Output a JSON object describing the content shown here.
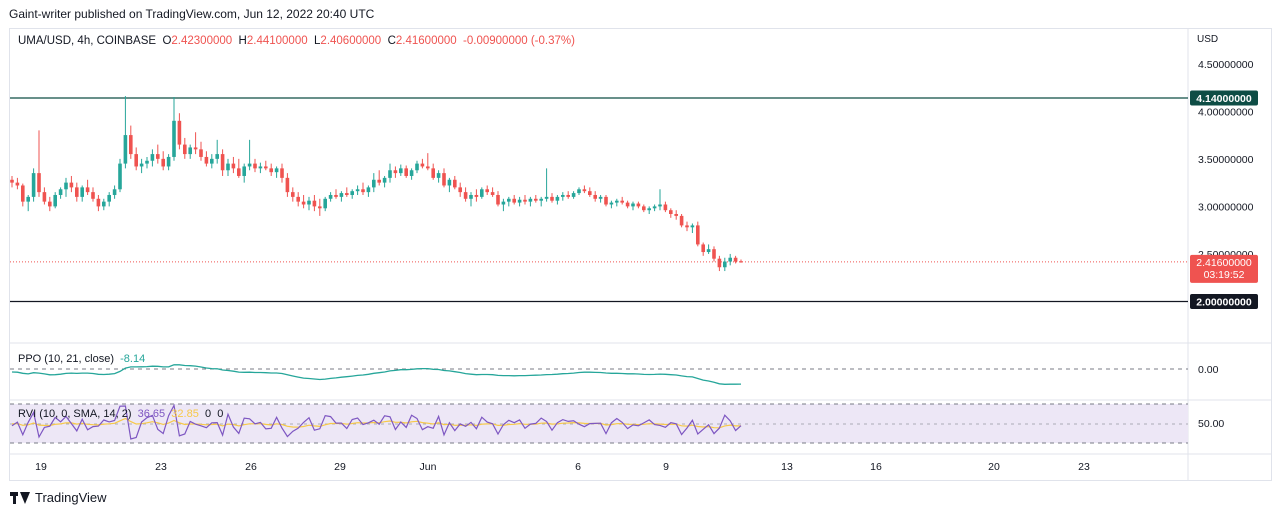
{
  "header": {
    "publisher": "Gaint-writer published on TradingView.com, Jun 12, 2022 20:40 UTC"
  },
  "legend": {
    "symbol": "UMA/USD, 4h, COINBASE",
    "o_label": "O",
    "o": "2.42300000",
    "h_label": "H",
    "h": "2.44100000",
    "l_label": "L",
    "l": "2.40600000",
    "c_label": "C",
    "c": "2.41600000",
    "change": "-0.00900000 (-0.37%)"
  },
  "currency": "USD",
  "colors": {
    "up": "#26a69a",
    "down": "#ef5350",
    "ppo": "#26a69a",
    "rvi": "#7e57c2",
    "rvi_signal": "#f7c948",
    "level_line": "#0e4d45",
    "support_line": "#131722",
    "rvi_bg": "#ede7f6"
  },
  "price_axis": {
    "ticks": [
      "4.50000000",
      "4.00000000",
      "3.50000000",
      "3.00000000",
      "2.50000000"
    ]
  },
  "levels": {
    "resistance": {
      "value": 4.14,
      "label": "4.14000000"
    },
    "support": {
      "value": 2.0,
      "label": "2.00000000"
    },
    "last": {
      "value": 2.416,
      "label": "2.41600000",
      "countdown": "03:19:52"
    }
  },
  "ppo": {
    "label": "PPO (10, 21, close)",
    "value": "-8.14",
    "axis_tick": "0.00"
  },
  "rvi": {
    "label_name": "RVI (10, 0, SMA, 14, 2)",
    "value1": "36.65",
    "value2": "32.85",
    "value3": "0",
    "value4": "0",
    "axis_tick": "50.00"
  },
  "time_axis": {
    "labels": [
      "19",
      "23",
      "26",
      "29",
      "Jun",
      "6",
      "9",
      "13",
      "16",
      "20",
      "23"
    ]
  },
  "footer": {
    "brand": "TradingView"
  },
  "chart_data": {
    "type": "candlestick",
    "title": "UMA/USD, 4h, COINBASE",
    "ylabel": "USD",
    "ylim": [
      1.7,
      4.75
    ],
    "candles_ohlc": [
      [
        3.28,
        3.32,
        3.2,
        3.25
      ],
      [
        3.25,
        3.3,
        3.18,
        3.22
      ],
      [
        3.22,
        3.24,
        3.0,
        3.05
      ],
      [
        3.05,
        3.12,
        2.95,
        3.1
      ],
      [
        3.1,
        3.4,
        3.05,
        3.35
      ],
      [
        3.35,
        3.8,
        3.1,
        3.15
      ],
      [
        3.15,
        3.2,
        3.02,
        3.05
      ],
      [
        3.05,
        3.1,
        2.95,
        3.0
      ],
      [
        3.0,
        3.15,
        2.98,
        3.12
      ],
      [
        3.12,
        3.2,
        3.08,
        3.18
      ],
      [
        3.18,
        3.3,
        3.1,
        3.25
      ],
      [
        3.25,
        3.32,
        3.15,
        3.2
      ],
      [
        3.2,
        3.25,
        3.05,
        3.1
      ],
      [
        3.1,
        3.22,
        3.05,
        3.2
      ],
      [
        3.2,
        3.28,
        3.12,
        3.15
      ],
      [
        3.15,
        3.2,
        3.05,
        3.08
      ],
      [
        3.08,
        3.12,
        2.95,
        3.0
      ],
      [
        3.0,
        3.08,
        2.96,
        3.05
      ],
      [
        3.05,
        3.15,
        3.0,
        3.12
      ],
      [
        3.12,
        3.22,
        3.08,
        3.18
      ],
      [
        3.18,
        3.5,
        3.15,
        3.45
      ],
      [
        3.45,
        4.16,
        3.4,
        3.75
      ],
      [
        3.75,
        3.85,
        3.5,
        3.55
      ],
      [
        3.55,
        3.62,
        3.38,
        3.42
      ],
      [
        3.42,
        3.5,
        3.35,
        3.45
      ],
      [
        3.45,
        3.52,
        3.4,
        3.48
      ],
      [
        3.48,
        3.6,
        3.42,
        3.55
      ],
      [
        3.55,
        3.65,
        3.45,
        3.5
      ],
      [
        3.5,
        3.58,
        3.38,
        3.42
      ],
      [
        3.42,
        3.55,
        3.38,
        3.52
      ],
      [
        3.52,
        4.15,
        3.48,
        3.9
      ],
      [
        3.9,
        3.98,
        3.6,
        3.65
      ],
      [
        3.65,
        3.72,
        3.5,
        3.55
      ],
      [
        3.55,
        3.65,
        3.5,
        3.62
      ],
      [
        3.62,
        3.78,
        3.55,
        3.6
      ],
      [
        3.6,
        3.68,
        3.48,
        3.52
      ],
      [
        3.52,
        3.58,
        3.42,
        3.45
      ],
      [
        3.45,
        3.55,
        3.4,
        3.5
      ],
      [
        3.5,
        3.7,
        3.45,
        3.55
      ],
      [
        3.55,
        3.6,
        3.32,
        3.38
      ],
      [
        3.38,
        3.5,
        3.32,
        3.45
      ],
      [
        3.45,
        3.52,
        3.35,
        3.4
      ],
      [
        3.4,
        3.5,
        3.3,
        3.32
      ],
      [
        3.32,
        3.45,
        3.25,
        3.42
      ],
      [
        3.42,
        3.7,
        3.38,
        3.45
      ],
      [
        3.45,
        3.5,
        3.36,
        3.4
      ],
      [
        3.4,
        3.46,
        3.35,
        3.42
      ],
      [
        3.42,
        3.48,
        3.38,
        3.4
      ],
      [
        3.4,
        3.45,
        3.32,
        3.36
      ],
      [
        3.36,
        3.42,
        3.3,
        3.4
      ],
      [
        3.4,
        3.45,
        3.25,
        3.3
      ],
      [
        3.3,
        3.35,
        3.1,
        3.15
      ],
      [
        3.15,
        3.2,
        3.05,
        3.1
      ],
      [
        3.1,
        3.15,
        3.0,
        3.05
      ],
      [
        3.05,
        3.12,
        2.98,
        3.02
      ],
      [
        3.02,
        3.1,
        2.96,
        3.06
      ],
      [
        3.06,
        3.12,
        2.95,
        3.0
      ],
      [
        3.0,
        3.08,
        2.9,
        2.98
      ],
      [
        2.98,
        3.1,
        2.95,
        3.08
      ],
      [
        3.08,
        3.15,
        3.05,
        3.12
      ],
      [
        3.12,
        3.18,
        3.08,
        3.1
      ],
      [
        3.1,
        3.16,
        3.05,
        3.14
      ],
      [
        3.14,
        3.2,
        3.1,
        3.12
      ],
      [
        3.12,
        3.18,
        3.08,
        3.16
      ],
      [
        3.16,
        3.22,
        3.12,
        3.18
      ],
      [
        3.18,
        3.25,
        3.12,
        3.15
      ],
      [
        3.15,
        3.22,
        3.1,
        3.2
      ],
      [
        3.2,
        3.35,
        3.15,
        3.28
      ],
      [
        3.28,
        3.38,
        3.22,
        3.25
      ],
      [
        3.25,
        3.32,
        3.2,
        3.3
      ],
      [
        3.3,
        3.45,
        3.25,
        3.38
      ],
      [
        3.38,
        3.42,
        3.3,
        3.35
      ],
      [
        3.35,
        3.44,
        3.32,
        3.4
      ],
      [
        3.4,
        3.43,
        3.3,
        3.32
      ],
      [
        3.32,
        3.4,
        3.28,
        3.38
      ],
      [
        3.38,
        3.48,
        3.35,
        3.45
      ],
      [
        3.45,
        3.5,
        3.4,
        3.42
      ],
      [
        3.42,
        3.56,
        3.38,
        3.4
      ],
      [
        3.4,
        3.45,
        3.28,
        3.3
      ],
      [
        3.3,
        3.38,
        3.25,
        3.35
      ],
      [
        3.35,
        3.4,
        3.2,
        3.22
      ],
      [
        3.22,
        3.3,
        3.15,
        3.28
      ],
      [
        3.28,
        3.32,
        3.18,
        3.2
      ],
      [
        3.2,
        3.25,
        3.1,
        3.15
      ],
      [
        3.15,
        3.2,
        3.05,
        3.08
      ],
      [
        3.08,
        3.15,
        3.0,
        3.12
      ],
      [
        3.12,
        3.18,
        3.05,
        3.1
      ],
      [
        3.1,
        3.2,
        3.08,
        3.18
      ],
      [
        3.18,
        3.22,
        3.12,
        3.15
      ],
      [
        3.15,
        3.2,
        3.1,
        3.12
      ],
      [
        3.12,
        3.16,
        3.0,
        3.02
      ],
      [
        3.02,
        3.08,
        2.95,
        3.05
      ],
      [
        3.05,
        3.1,
        3.0,
        3.08
      ],
      [
        3.08,
        3.12,
        3.02,
        3.04
      ],
      [
        3.04,
        3.1,
        3.0,
        3.07
      ],
      [
        3.07,
        3.12,
        3.02,
        3.05
      ],
      [
        3.05,
        3.1,
        3.0,
        3.08
      ],
      [
        3.08,
        3.12,
        3.04,
        3.06
      ],
      [
        3.06,
        3.1,
        3.0,
        3.08
      ],
      [
        3.08,
        3.4,
        3.05,
        3.1
      ],
      [
        3.1,
        3.14,
        3.04,
        3.06
      ],
      [
        3.06,
        3.12,
        3.02,
        3.1
      ],
      [
        3.1,
        3.15,
        3.06,
        3.12
      ],
      [
        3.12,
        3.16,
        3.08,
        3.1
      ],
      [
        3.1,
        3.16,
        3.08,
        3.14
      ],
      [
        3.14,
        3.2,
        3.12,
        3.18
      ],
      [
        3.18,
        3.22,
        3.14,
        3.16
      ],
      [
        3.16,
        3.2,
        3.1,
        3.12
      ],
      [
        3.12,
        3.16,
        3.05,
        3.08
      ],
      [
        3.08,
        3.12,
        3.04,
        3.1
      ],
      [
        3.1,
        3.12,
        3.0,
        3.02
      ],
      [
        3.02,
        3.06,
        2.98,
        3.04
      ],
      [
        3.04,
        3.08,
        3.0,
        3.06
      ],
      [
        3.06,
        3.1,
        3.02,
        3.04
      ],
      [
        3.04,
        3.06,
        2.98,
        3.0
      ],
      [
        3.0,
        3.05,
        2.96,
        3.03
      ],
      [
        3.03,
        3.05,
        2.98,
        3.0
      ],
      [
        3.0,
        3.02,
        2.94,
        2.96
      ],
      [
        2.96,
        3.0,
        2.92,
        2.98
      ],
      [
        2.98,
        3.02,
        2.95,
        3.0
      ],
      [
        3.0,
        3.18,
        2.96,
        3.02
      ],
      [
        3.02,
        3.05,
        2.94,
        2.96
      ],
      [
        2.96,
        2.98,
        2.88,
        2.92
      ],
      [
        2.92,
        2.96,
        2.86,
        2.9
      ],
      [
        2.9,
        2.92,
        2.78,
        2.8
      ],
      [
        2.8,
        2.84,
        2.74,
        2.78
      ],
      [
        2.78,
        2.82,
        2.72,
        2.8
      ],
      [
        2.8,
        2.84,
        2.58,
        2.6
      ],
      [
        2.6,
        2.62,
        2.48,
        2.52
      ],
      [
        2.52,
        2.6,
        2.5,
        2.55
      ],
      [
        2.55,
        2.58,
        2.42,
        2.45
      ],
      [
        2.45,
        2.48,
        2.32,
        2.36
      ],
      [
        2.36,
        2.46,
        2.32,
        2.42
      ],
      [
        2.42,
        2.5,
        2.38,
        2.46
      ],
      [
        2.46,
        2.48,
        2.4,
        2.42
      ],
      [
        2.423,
        2.441,
        2.406,
        2.416
      ]
    ]
  }
}
